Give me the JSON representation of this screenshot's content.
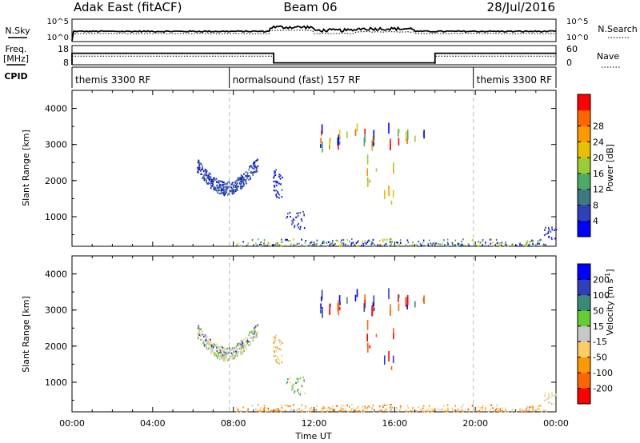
{
  "header": {
    "radar": "Adak East (fitACF)",
    "beam": "Beam 06",
    "date": "28/Jul/2016"
  },
  "noise_panel": {
    "left_label": "N.Sky",
    "right_label": "N.Search",
    "left_ticks": [
      "10^5",
      "10^0"
    ],
    "right_ticks": [
      "10^5",
      "10^0"
    ]
  },
  "freq_panel": {
    "left_label_1": "Freq.",
    "left_label_2": "[MHz]",
    "right_label": "Nave",
    "left_ticks": [
      "18",
      "8"
    ],
    "right_ticks": [
      "60",
      "0"
    ],
    "freq_segments": [
      {
        "start_h": 0,
        "end_h": 10,
        "level": 0.6
      },
      {
        "start_h": 10,
        "end_h": 18,
        "level": 0.1
      },
      {
        "start_h": 18,
        "end_h": 24,
        "level": 0.6
      }
    ]
  },
  "cpid": {
    "label": "CPID",
    "segments": [
      {
        "start_h": 0,
        "end_h": 7.8,
        "name": "themis 3300 RF"
      },
      {
        "start_h": 7.8,
        "end_h": 19.9,
        "name": "normalsound (fast) 157 RF"
      },
      {
        "start_h": 19.9,
        "end_h": 24,
        "name": "themis 3300 RF"
      }
    ]
  },
  "chart_data": [
    {
      "type": "heatmap",
      "quantity": "power",
      "ylabel": "Slant Range [km]",
      "xlabel": "",
      "xlim": [
        0,
        24
      ],
      "ylim": [
        180,
        4500
      ],
      "yticks": [
        "1000",
        "2000",
        "3000",
        "4000"
      ],
      "colorbar_label": "Power [dB]",
      "colorbar_ticks": [
        "4",
        "8",
        "12",
        "16",
        "20",
        "24",
        "28"
      ],
      "colorbar_colors": [
        "#0000ff",
        "#2f3fb8",
        "#3a7a80",
        "#4daa66",
        "#9acd32",
        "#e8c000",
        "#ff9900",
        "#ff6600",
        "#ff0000"
      ],
      "clusters": [
        {
          "t0": 6.2,
          "t1": 9.2,
          "r0": 1800,
          "r1": 2600,
          "shape": "arc",
          "n": 340,
          "colors": [
            "#2f3fb8",
            "#2f3fb8",
            "#0000ff",
            "#3a7a80"
          ]
        },
        {
          "t0": 9.9,
          "t1": 10.4,
          "r0": 1500,
          "r1": 2300,
          "shape": "box",
          "n": 40,
          "colors": [
            "#2f3fb8",
            "#0000ff"
          ]
        },
        {
          "t0": 10.6,
          "t1": 11.5,
          "r0": 650,
          "r1": 1200,
          "shape": "box",
          "n": 30,
          "colors": [
            "#2f3fb8",
            "#0000ff"
          ]
        },
        {
          "t0": 12.3,
          "t1": 18.2,
          "r0": 2900,
          "r1": 3500,
          "shape": "streaks",
          "n": 40,
          "colors": [
            "#ff6600",
            "#e8c000",
            "#4daa66",
            "#0000ff",
            "#ff0000",
            "#9acd32"
          ]
        },
        {
          "t0": 14.5,
          "t1": 16.0,
          "r0": 1300,
          "r1": 2700,
          "shape": "streaks",
          "n": 12,
          "colors": [
            "#ff9900",
            "#e8c000",
            "#9acd32"
          ]
        },
        {
          "t0": 8.0,
          "t1": 23.5,
          "r0": 190,
          "r1": 380,
          "shape": "ground",
          "n": 320,
          "colors": [
            "#2f3fb8",
            "#4daa66",
            "#0000ff",
            "#3a7a80",
            "#9acd32",
            "#e8c000"
          ]
        },
        {
          "t0": 23.4,
          "t1": 24.0,
          "r0": 350,
          "r1": 700,
          "shape": "box",
          "n": 20,
          "colors": [
            "#0000ff",
            "#2f3fb8"
          ]
        }
      ]
    },
    {
      "type": "heatmap",
      "quantity": "velocity",
      "ylabel": "Slant Range [km]",
      "xlabel": "Time UT",
      "xlim": [
        0,
        24
      ],
      "ylim": [
        180,
        4500
      ],
      "yticks": [
        "1000",
        "2000",
        "3000",
        "4000"
      ],
      "xticks": [
        "00:00",
        "04:00",
        "08:00",
        "12:00",
        "16:00",
        "20:00",
        "00:00"
      ],
      "colorbar_label": "Velocity [m s",
      "colorbar_label_sup": "-1",
      "colorbar_label_end": "]",
      "colorbar_ticks": [
        "-200",
        "-100",
        "-50",
        "-15",
        "15",
        "50",
        "100",
        "200"
      ],
      "colorbar_colors": [
        "#ff0000",
        "#ff6600",
        "#ff9900",
        "#ffcc66",
        "#c8c8c8",
        "#66cc33",
        "#3a8a7a",
        "#2f3fb8",
        "#0000ff"
      ],
      "clusters": [
        {
          "t0": 6.2,
          "t1": 9.2,
          "r0": 1800,
          "r1": 2600,
          "shape": "arc",
          "n": 340,
          "colors": [
            "#c8c8c8",
            "#c8c8c8",
            "#ffcc66",
            "#2f3fb8",
            "#66cc33"
          ]
        },
        {
          "t0": 9.9,
          "t1": 10.4,
          "r0": 1500,
          "r1": 2300,
          "shape": "box",
          "n": 40,
          "colors": [
            "#c8c8c8",
            "#ffcc66",
            "#ff9900"
          ]
        },
        {
          "t0": 10.6,
          "t1": 11.5,
          "r0": 650,
          "r1": 1200,
          "shape": "box",
          "n": 30,
          "colors": [
            "#66cc33",
            "#3a8a7a",
            "#ffcc66"
          ]
        },
        {
          "t0": 12.3,
          "t1": 18.2,
          "r0": 2900,
          "r1": 3500,
          "shape": "streaks",
          "n": 40,
          "colors": [
            "#0000ff",
            "#ff0000",
            "#2f3fb8",
            "#ff6600",
            "#3a8a7a"
          ]
        },
        {
          "t0": 14.5,
          "t1": 16.0,
          "r0": 1300,
          "r1": 2700,
          "shape": "streaks",
          "n": 12,
          "colors": [
            "#ff0000",
            "#2f3fb8",
            "#ff6600"
          ]
        },
        {
          "t0": 8.0,
          "t1": 23.5,
          "r0": 190,
          "r1": 380,
          "shape": "ground",
          "n": 320,
          "colors": [
            "#ffcc66",
            "#ff9900",
            "#ffcc66",
            "#c8c8c8",
            "#ff6600"
          ]
        },
        {
          "t0": 23.4,
          "t1": 24.0,
          "r0": 350,
          "r1": 700,
          "shape": "box",
          "n": 20,
          "colors": [
            "#c8c8c8",
            "#ffcc66"
          ]
        }
      ]
    }
  ]
}
